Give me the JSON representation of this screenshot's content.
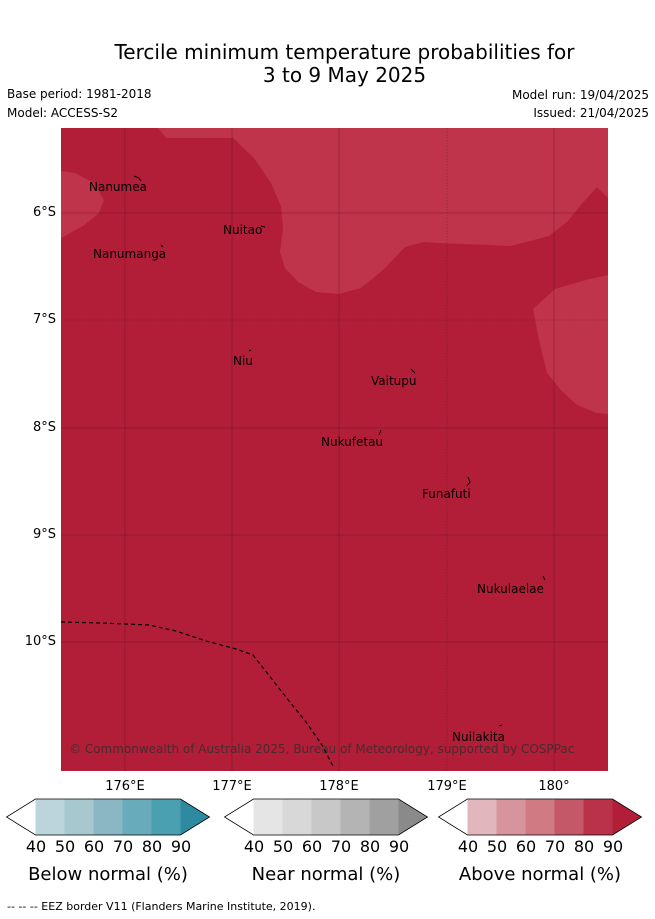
{
  "title_line1": "Tercile minimum temperature probabilities for",
  "title_line2": "3 to 9 May 2025",
  "base_period": "Base period: 1981-2018",
  "model": "Model: ACCESS-S2",
  "model_run": "Model run: 19/04/2025",
  "issued": "Issued: 21/04/2025",
  "map": {
    "lat_labels": [
      "6°S",
      "7°S",
      "8°S",
      "9°S",
      "10°S"
    ],
    "lon_labels": [
      "176°E",
      "177°E",
      "178°E",
      "179°E",
      "180°"
    ],
    "places": [
      "Nanumea",
      "Nuitao",
      "Nanumanga",
      "Niu",
      "Vaitupu",
      "Nukufetau",
      "Funafuti",
      "Nukulaelae",
      "Nuilakita"
    ],
    "copyright": "© Commonwealth of Australia 2025, Bureau of Meteorology, supported by COSPPac",
    "colors": {
      "above_90": "#b21e38",
      "above_80": "#bf344a",
      "border": "#000000"
    }
  },
  "colorbars": [
    {
      "label": "Below normal (%)",
      "ticks": [
        "40",
        "50",
        "60",
        "70",
        "80",
        "90"
      ],
      "colors": [
        "#ffffff",
        "#bcd4db",
        "#a7c8cf",
        "#8ab7c3",
        "#68abbb",
        "#4a9fb0",
        "#2d8aa0"
      ]
    },
    {
      "label": "Near normal (%)",
      "ticks": [
        "40",
        "50",
        "60",
        "70",
        "80",
        "90"
      ],
      "colors": [
        "#ffffff",
        "#e5e5e5",
        "#d8d8d8",
        "#c8c8c8",
        "#b4b4b4",
        "#a0a0a0",
        "#8a8a8a"
      ]
    },
    {
      "label": "Above normal (%)",
      "ticks": [
        "40",
        "50",
        "60",
        "70",
        "80",
        "90"
      ],
      "colors": [
        "#ffffff",
        "#e2b6bd",
        "#d8949d",
        "#d07b84",
        "#c45868",
        "#ba3249",
        "#b21e38"
      ]
    }
  ],
  "footer": "--  --  -- EEZ border V11 (Flanders Marine Institute, 2019)."
}
